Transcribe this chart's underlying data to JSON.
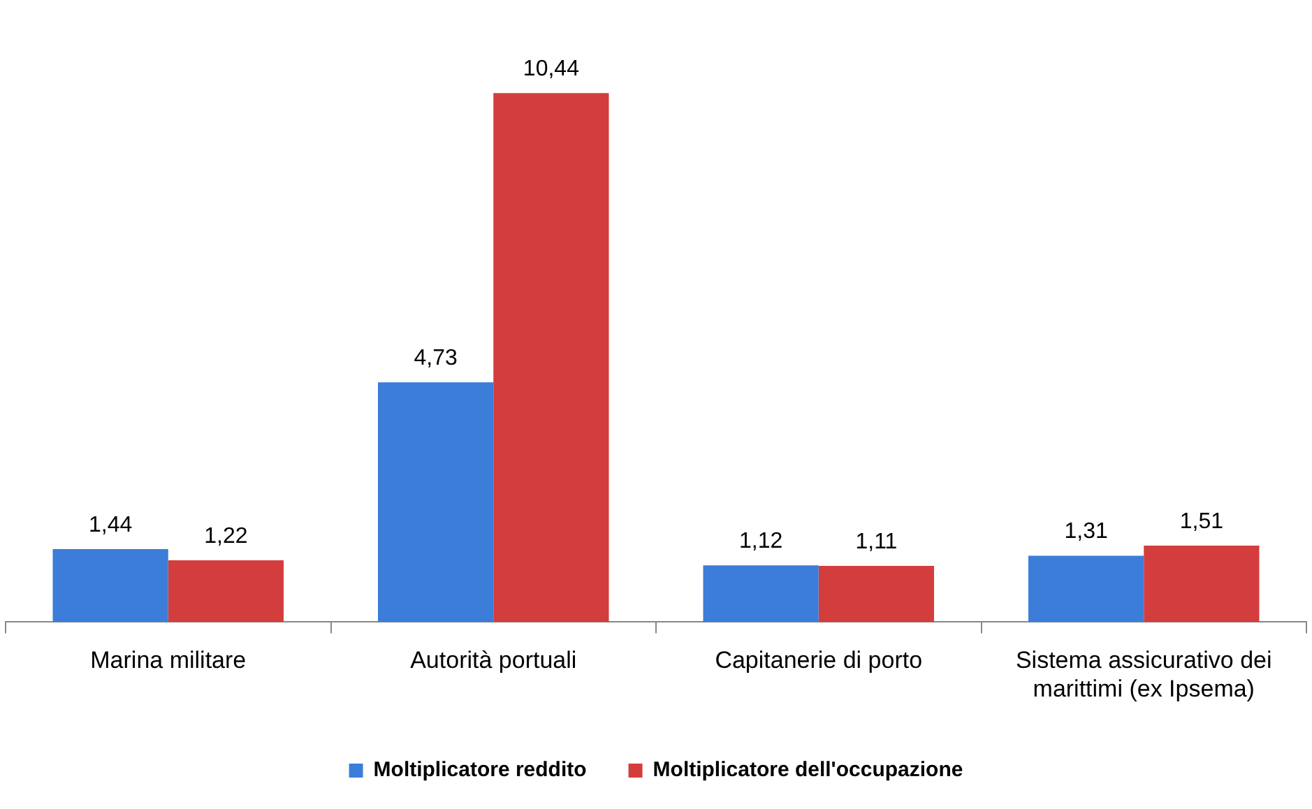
{
  "chart_data": {
    "type": "bar",
    "categories": [
      "Marina militare",
      "Autorità portuali",
      "Capitanerie di porto",
      "Sistema assicurativo dei marittimi (ex Ipsema)"
    ],
    "series": [
      {
        "name": "Moltiplicatore reddito",
        "color": "#3b7dd8",
        "values": [
          1.44,
          4.73,
          1.12,
          1.31
        ],
        "value_labels": [
          "1,44",
          "4,73",
          "1,12",
          "1,31"
        ]
      },
      {
        "name": "Moltiplicatore dell'occupazione",
        "color": "#d43d3d",
        "values": [
          1.22,
          10.44,
          1.11,
          1.51
        ],
        "value_labels": [
          "1,22",
          "10,44",
          "1,11",
          "1,51"
        ]
      }
    ],
    "legend": "bottom"
  }
}
